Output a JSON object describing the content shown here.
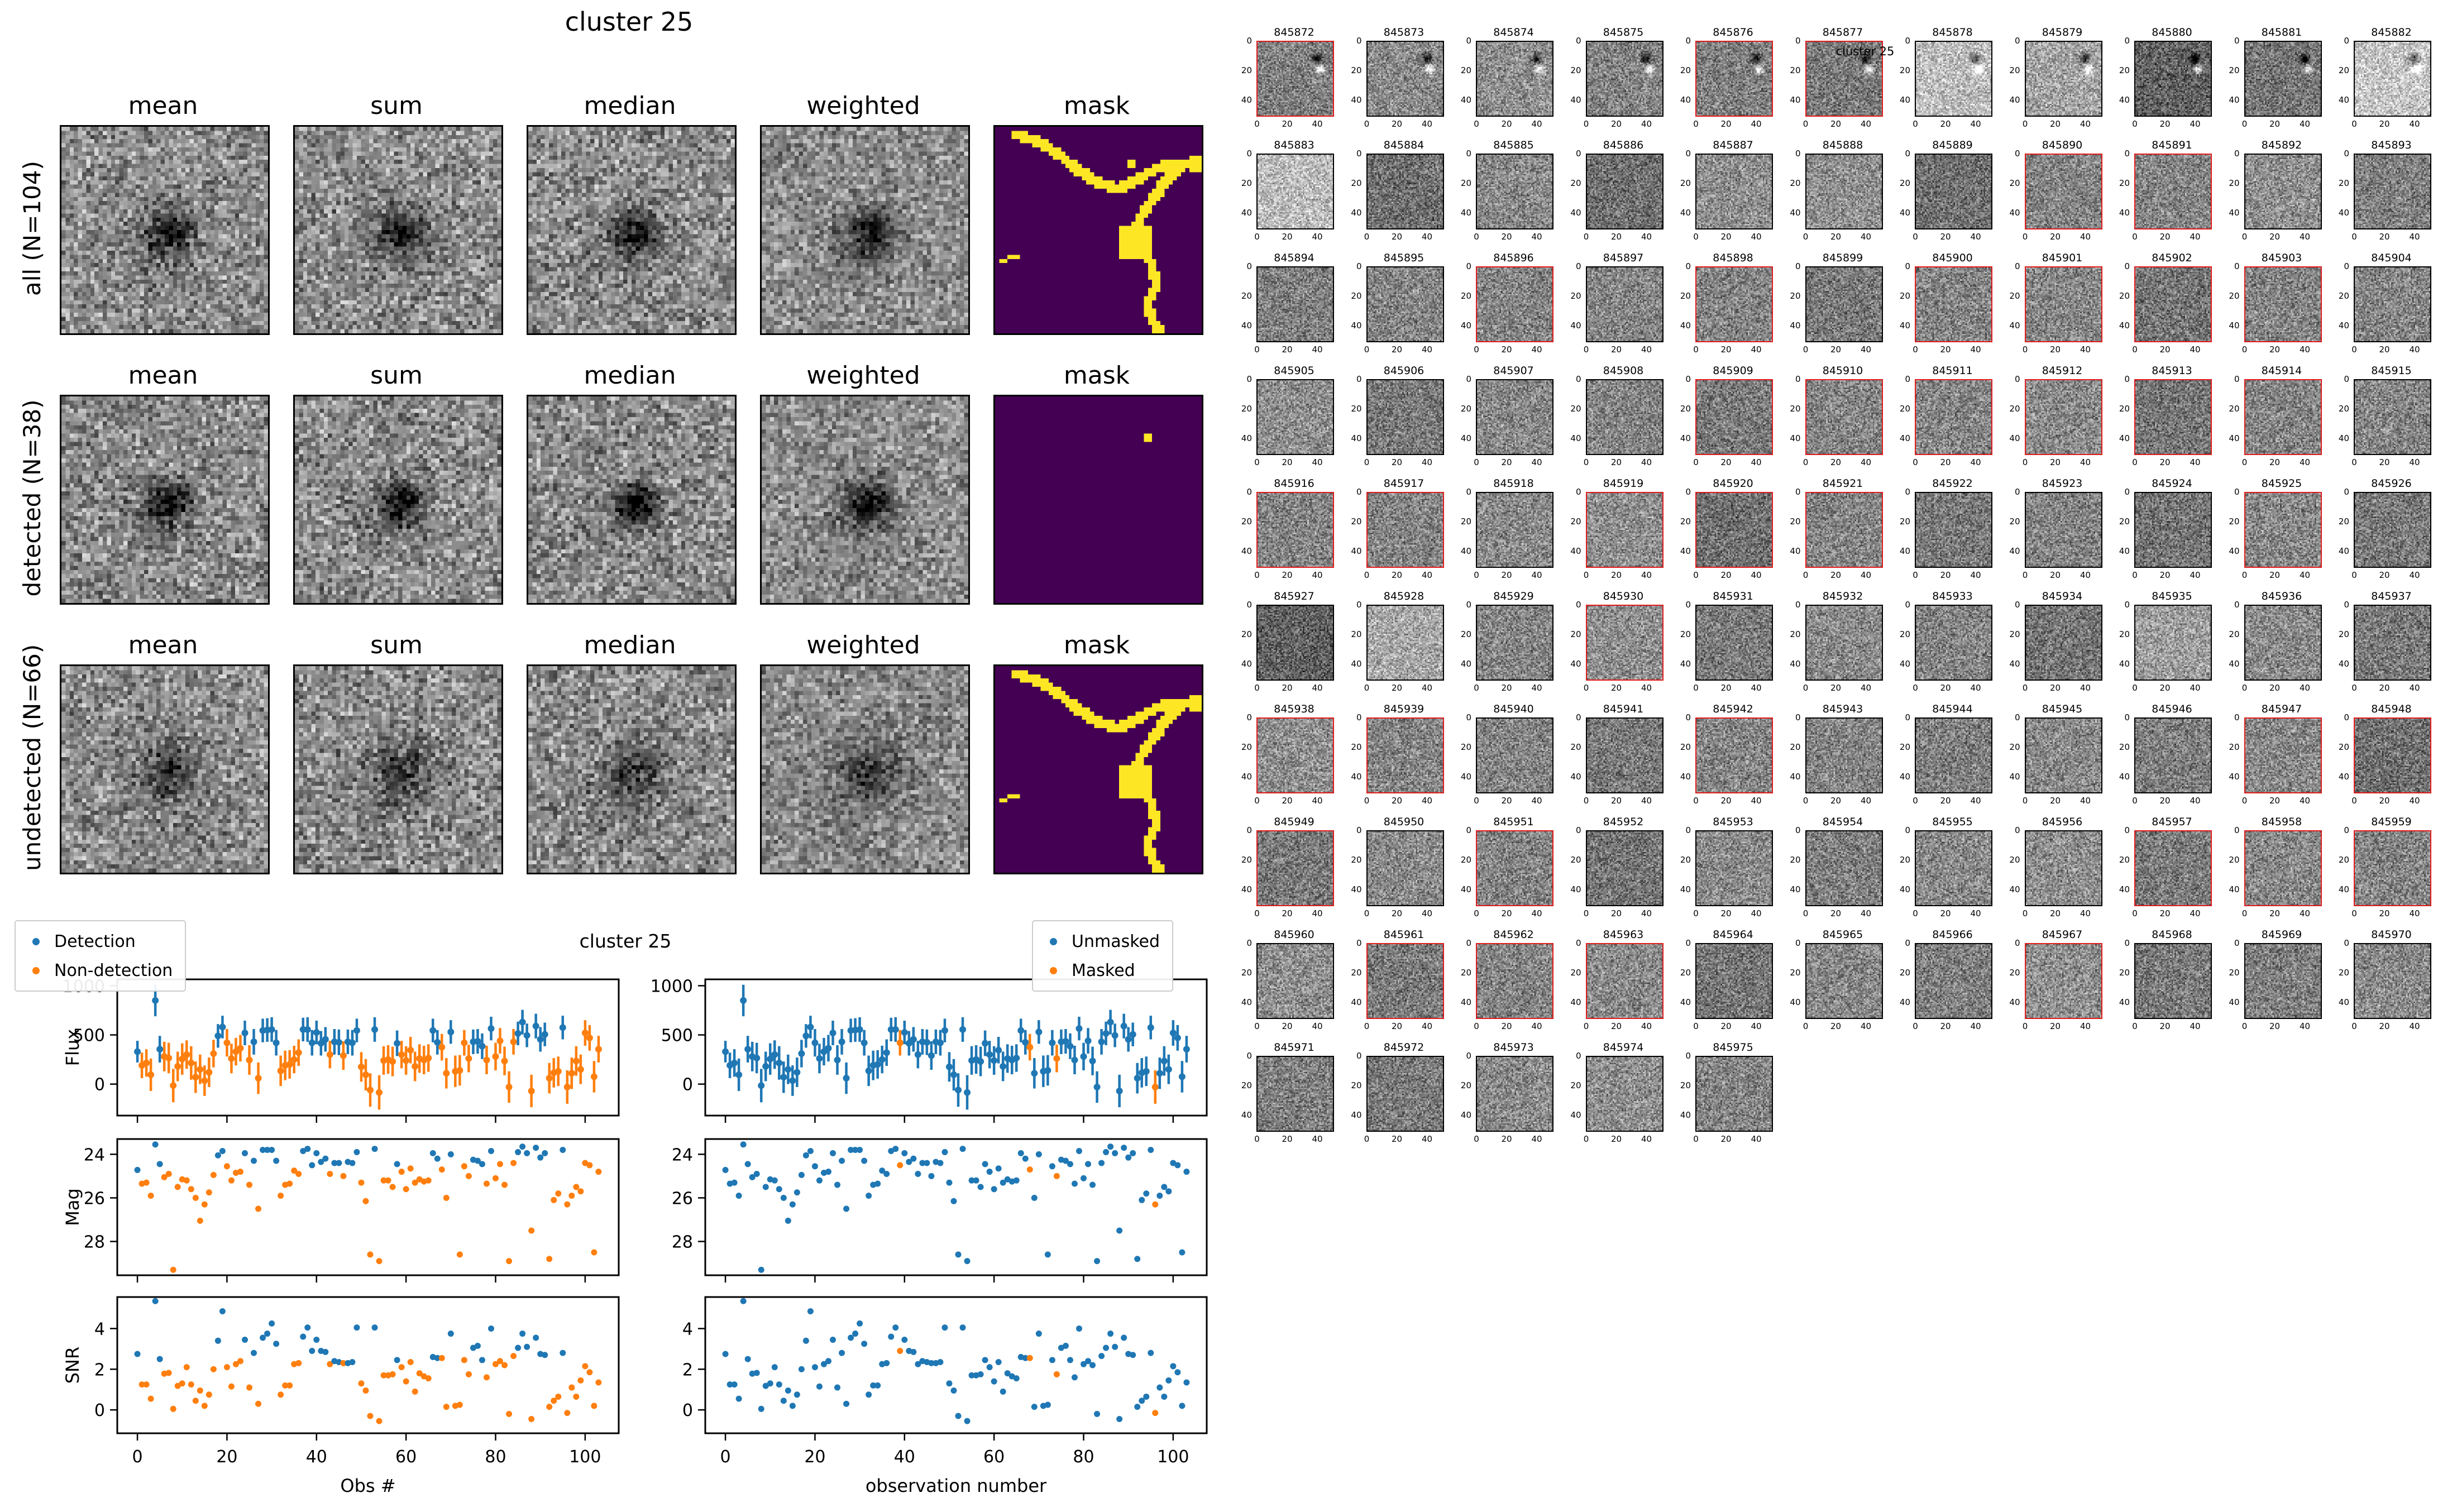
{
  "left_figure": {
    "suptitle": "cluster 25",
    "columns": [
      "mean",
      "sum",
      "median",
      "weighted",
      "mask"
    ],
    "rows": [
      {
        "label": "all (N=104)",
        "mask": "full_dot",
        "blob": 0.4,
        "sigma": 3.6
      },
      {
        "label": "detected (N=38)",
        "mask": "dot",
        "blob": 0.45,
        "sigma": 3.4
      },
      {
        "label": "undetected (N=66)",
        "mask": "full",
        "blob": 0.25,
        "sigma": 4.8
      }
    ],
    "mask_colors": {
      "bg": "#440154",
      "fg": "#fde725"
    },
    "mask_pattern": {
      "curve": [
        [
          0.1,
          0.04
        ],
        [
          0.2,
          0.07
        ],
        [
          0.3,
          0.13
        ],
        [
          0.42,
          0.22
        ],
        [
          0.52,
          0.285
        ],
        [
          0.6,
          0.3
        ],
        [
          0.68,
          0.27
        ],
        [
          0.76,
          0.22
        ],
        [
          0.84,
          0.185
        ],
        [
          0.93,
          0.185
        ],
        [
          1.0,
          0.21
        ]
      ],
      "branch": [
        [
          0.995,
          0.155
        ],
        [
          0.9,
          0.2
        ],
        [
          0.82,
          0.28
        ],
        [
          0.755,
          0.37
        ],
        [
          0.7,
          0.465
        ],
        [
          0.665,
          0.535
        ],
        [
          0.7,
          0.575
        ],
        [
          0.745,
          0.63
        ],
        [
          0.77,
          0.7
        ],
        [
          0.78,
          0.78
        ],
        [
          0.745,
          0.855
        ],
        [
          0.76,
          0.93
        ],
        [
          0.8,
          1.0
        ]
      ],
      "blob": [
        0.675,
        0.545,
        0.075
      ],
      "tick": [
        [
          0.03,
          0.655
        ],
        [
          0.115,
          0.625
        ]
      ],
      "dot_row1": [
        0.645,
        0.165
      ],
      "dot_row2": [
        0.72,
        0.17
      ]
    }
  },
  "right_panel": {
    "suptitle": "cluster 25",
    "axis_ticks": [
      "0",
      "20",
      "40"
    ],
    "red_border_color": "#e01b1b",
    "cells": [
      [
        845872,
        1,
        0.5,
        1
      ],
      [
        845873,
        0,
        0.54,
        1
      ],
      [
        845874,
        0,
        0.56,
        1
      ],
      [
        845875,
        0,
        0.52,
        1
      ],
      [
        845876,
        1,
        0.5,
        1
      ],
      [
        845877,
        1,
        0.48,
        1
      ],
      [
        845878,
        0,
        0.74,
        1
      ],
      [
        845879,
        0,
        0.64,
        1
      ],
      [
        845880,
        0,
        0.38,
        1
      ],
      [
        845881,
        0,
        0.46,
        1
      ],
      [
        845882,
        0,
        0.78,
        1
      ],
      [
        845883,
        0,
        0.74,
        0
      ],
      [
        845884,
        0,
        0.44,
        0
      ],
      [
        845885,
        0,
        0.54,
        0
      ],
      [
        845886,
        0,
        0.44,
        0
      ],
      [
        845887,
        0,
        0.56,
        0
      ],
      [
        845888,
        0,
        0.56,
        0
      ],
      [
        845889,
        0,
        0.44,
        0
      ],
      [
        845890,
        1,
        0.52,
        0
      ],
      [
        845891,
        1,
        0.52,
        0
      ],
      [
        845892,
        0,
        0.56,
        0
      ],
      [
        845893,
        0,
        0.5,
        0
      ],
      [
        845894,
        0,
        0.5,
        0
      ],
      [
        845895,
        0,
        0.52,
        0
      ],
      [
        845896,
        1,
        0.52,
        0
      ],
      [
        845897,
        0,
        0.52,
        0
      ],
      [
        845898,
        1,
        0.52,
        0
      ],
      [
        845899,
        0,
        0.48,
        0
      ],
      [
        845900,
        1,
        0.52,
        0
      ],
      [
        845901,
        1,
        0.52,
        0
      ],
      [
        845902,
        1,
        0.46,
        0
      ],
      [
        845903,
        1,
        0.52,
        0
      ],
      [
        845904,
        0,
        0.52,
        0
      ],
      [
        845905,
        0,
        0.56,
        0
      ],
      [
        845906,
        0,
        0.48,
        0
      ],
      [
        845907,
        0,
        0.54,
        0
      ],
      [
        845908,
        0,
        0.52,
        0
      ],
      [
        845909,
        1,
        0.48,
        0
      ],
      [
        845910,
        1,
        0.52,
        0
      ],
      [
        845911,
        1,
        0.52,
        0
      ],
      [
        845912,
        1,
        0.54,
        0
      ],
      [
        845913,
        1,
        0.46,
        0
      ],
      [
        845914,
        1,
        0.52,
        0
      ],
      [
        845915,
        0,
        0.52,
        0
      ],
      [
        845916,
        1,
        0.52,
        0
      ],
      [
        845917,
        1,
        0.52,
        0
      ],
      [
        845918,
        0,
        0.54,
        0
      ],
      [
        845919,
        1,
        0.56,
        0
      ],
      [
        845920,
        1,
        0.44,
        0
      ],
      [
        845921,
        1,
        0.52,
        0
      ],
      [
        845922,
        0,
        0.48,
        0
      ],
      [
        845923,
        0,
        0.52,
        0
      ],
      [
        845924,
        0,
        0.46,
        0
      ],
      [
        845925,
        1,
        0.54,
        0
      ],
      [
        845926,
        0,
        0.48,
        0
      ],
      [
        845927,
        0,
        0.38,
        0
      ],
      [
        845928,
        0,
        0.66,
        0
      ],
      [
        845929,
        0,
        0.52,
        0
      ],
      [
        845930,
        1,
        0.56,
        0
      ],
      [
        845931,
        0,
        0.48,
        0
      ],
      [
        845932,
        0,
        0.54,
        0
      ],
      [
        845933,
        0,
        0.52,
        0
      ],
      [
        845934,
        0,
        0.46,
        0
      ],
      [
        845935,
        0,
        0.62,
        0
      ],
      [
        845936,
        0,
        0.54,
        0
      ],
      [
        845937,
        0,
        0.48,
        0
      ],
      [
        845938,
        1,
        0.56,
        0
      ],
      [
        845939,
        1,
        0.52,
        0
      ],
      [
        845940,
        0,
        0.52,
        0
      ],
      [
        845941,
        0,
        0.48,
        0
      ],
      [
        845942,
        1,
        0.52,
        0
      ],
      [
        845943,
        0,
        0.52,
        0
      ],
      [
        845944,
        0,
        0.5,
        0
      ],
      [
        845945,
        0,
        0.54,
        0
      ],
      [
        845946,
        0,
        0.5,
        0
      ],
      [
        845947,
        1,
        0.54,
        0
      ],
      [
        845948,
        1,
        0.44,
        0
      ],
      [
        845949,
        1,
        0.48,
        0
      ],
      [
        845950,
        0,
        0.54,
        0
      ],
      [
        845951,
        1,
        0.52,
        0
      ],
      [
        845952,
        0,
        0.46,
        0
      ],
      [
        845953,
        0,
        0.54,
        0
      ],
      [
        845954,
        0,
        0.5,
        0
      ],
      [
        845955,
        0,
        0.54,
        0
      ],
      [
        845956,
        0,
        0.56,
        0
      ],
      [
        845957,
        1,
        0.48,
        0
      ],
      [
        845958,
        1,
        0.54,
        0
      ],
      [
        845959,
        1,
        0.52,
        0
      ],
      [
        845960,
        0,
        0.56,
        0
      ],
      [
        845961,
        1,
        0.48,
        0
      ],
      [
        845962,
        1,
        0.52,
        0
      ],
      [
        845963,
        1,
        0.54,
        0
      ],
      [
        845964,
        0,
        0.46,
        0
      ],
      [
        845965,
        0,
        0.54,
        0
      ],
      [
        845966,
        0,
        0.5,
        0
      ],
      [
        845967,
        1,
        0.56,
        0
      ],
      [
        845968,
        0,
        0.48,
        0
      ],
      [
        845969,
        0,
        0.5,
        0
      ],
      [
        845970,
        0,
        0.54,
        0
      ],
      [
        845971,
        0,
        0.5,
        0
      ],
      [
        845972,
        0,
        0.48,
        0
      ],
      [
        845973,
        0,
        0.54,
        0
      ],
      [
        845974,
        0,
        0.56,
        0
      ],
      [
        845975,
        0,
        0.52,
        0
      ]
    ]
  },
  "chart_data": {
    "type": "scatter",
    "title": "cluster 25",
    "legend_left": [
      "Detection",
      "Non-detection"
    ],
    "legend_right": [
      "Unmasked",
      "Masked"
    ],
    "colors": {
      "blue": "#1f77b4",
      "orange": "#ff7f0e"
    },
    "xlabel_left": "Obs #",
    "xlabel_right": "observation number",
    "xticks": [
      0,
      20,
      40,
      60,
      80,
      100
    ],
    "xlim": [
      -4.5,
      107.5
    ],
    "panels": [
      {
        "key": "flux",
        "ylabel": "Flux",
        "yticks": [
          0,
          500,
          1000
        ],
        "ylim": [
          -320,
          1065
        ],
        "invert": false,
        "errorbars": true
      },
      {
        "key": "mag",
        "ylabel": "Mag",
        "yticks": [
          24,
          26,
          28
        ],
        "ylim": [
          23.3,
          29.55
        ],
        "invert": true,
        "errorbars": false
      },
      {
        "key": "snr",
        "ylabel": "SNR",
        "yticks": [
          0,
          2,
          4
        ],
        "ylim": [
          -1.15,
          5.55
        ],
        "invert": false,
        "errorbars": false
      }
    ],
    "x_is_index": true,
    "flux": [
      330,
      190,
      215,
      95,
      850,
      355,
      280,
      265,
      -15,
      180,
      255,
      300,
      215,
      70,
      150,
      35,
      120,
      310,
      490,
      580,
      420,
      260,
      330,
      365,
      520,
      245,
      430,
      60,
      545,
      550,
      555,
      420,
      135,
      190,
      200,
      250,
      320,
      555,
      555,
      420,
      525,
      415,
      455,
      300,
      430,
      425,
      290,
      430,
      420,
      545,
      175,
      95,
      -60,
      555,
      -85,
      240,
      250,
      230,
      415,
      300,
      240,
      345,
      180,
      260,
      245,
      265,
      545,
      425,
      375,
      110,
      530,
      130,
      140,
      420,
      260,
      430,
      435,
      385,
      245,
      565,
      280,
      440,
      235,
      -30,
      430,
      515,
      630,
      495,
      -70,
      590,
      455,
      505,
      60,
      115,
      130,
      575,
      -30,
      110,
      235,
      150,
      520,
      470,
      75,
      355
    ],
    "flux_err": [
      110,
      130,
      140,
      165,
      160,
      135,
      150,
      155,
      170,
      150,
      160,
      145,
      170,
      160,
      150,
      155,
      150,
      140,
      120,
      115,
      140,
      150,
      140,
      135,
      125,
      150,
      130,
      160,
      120,
      120,
      125,
      130,
      155,
      150,
      145,
      140,
      135,
      120,
      125,
      130,
      120,
      125,
      125,
      140,
      130,
      130,
      145,
      125,
      130,
      120,
      150,
      160,
      170,
      125,
      175,
      145,
      145,
      150,
      130,
      140,
      145,
      135,
      150,
      145,
      145,
      140,
      120,
      125,
      135,
      155,
      120,
      160,
      155,
      130,
      140,
      125,
      125,
      130,
      145,
      120,
      140,
      130,
      145,
      160,
      130,
      120,
      125,
      120,
      165,
      125,
      125,
      120,
      155,
      150,
      150,
      120,
      170,
      160,
      150,
      150,
      130,
      130,
      160,
      135
    ],
    "mag": [
      24.72,
      25.35,
      25.3,
      25.9,
      23.55,
      24.45,
      25.05,
      24.9,
      29.3,
      25.5,
      25.15,
      25.2,
      25.6,
      26.0,
      27.05,
      26.3,
      25.75,
      24.95,
      24.05,
      23.85,
      24.55,
      25.2,
      24.85,
      24.8,
      23.95,
      25.4,
      24.3,
      26.5,
      23.8,
      23.8,
      23.8,
      24.3,
      25.9,
      25.4,
      25.35,
      24.75,
      24.9,
      23.85,
      23.75,
      24.5,
      23.95,
      24.35,
      24.2,
      24.9,
      24.4,
      24.4,
      25.0,
      24.35,
      24.4,
      23.9,
      25.3,
      26.15,
      28.6,
      23.75,
      28.9,
      25.2,
      25.2,
      25.5,
      24.45,
      24.8,
      25.6,
      24.65,
      25.3,
      25.15,
      25.25,
      25.2,
      23.95,
      24.2,
      24.7,
      26.0,
      24.0,
      29.45,
      28.6,
      24.55,
      25.0,
      24.25,
      24.3,
      24.45,
      25.35,
      23.85,
      25.1,
      24.45,
      25.4,
      28.9,
      24.4,
      23.9,
      23.65,
      23.95,
      27.5,
      23.7,
      24.15,
      23.95,
      28.8,
      26.1,
      25.8,
      23.8,
      26.3,
      25.9,
      25.5,
      25.7,
      24.4,
      24.5,
      28.5,
      24.8
    ],
    "snr": [
      2.75,
      1.25,
      1.25,
      0.55,
      5.35,
      2.5,
      1.78,
      1.82,
      0.05,
      1.18,
      1.3,
      2.1,
      1.25,
      0.45,
      0.95,
      0.2,
      0.75,
      2.0,
      3.4,
      4.85,
      2.1,
      1.15,
      2.25,
      2.4,
      3.45,
      1.1,
      2.8,
      0.3,
      3.55,
      3.75,
      4.25,
      3.25,
      0.75,
      1.2,
      1.2,
      2.25,
      2.3,
      3.6,
      4.05,
      2.9,
      3.45,
      2.9,
      2.85,
      2.25,
      2.4,
      2.35,
      2.3,
      2.3,
      2.35,
      4.05,
      1.3,
      0.95,
      -0.3,
      4.05,
      -0.55,
      1.7,
      1.7,
      1.75,
      2.45,
      2.1,
      1.4,
      2.35,
      0.9,
      1.8,
      1.65,
      1.55,
      2.6,
      2.55,
      2.55,
      0.15,
      3.75,
      0.2,
      0.25,
      2.45,
      1.75,
      3.05,
      3.15,
      2.45,
      1.6,
      4.0,
      2.25,
      2.4,
      2.2,
      -0.2,
      2.65,
      3.05,
      3.75,
      3.1,
      -0.45,
      3.55,
      2.75,
      2.7,
      0.15,
      0.45,
      0.65,
      2.8,
      -0.15,
      1.1,
      0.65,
      1.45,
      2.15,
      1.85,
      0.2,
      1.35
    ],
    "detected_idx": [
      0,
      4,
      5,
      18,
      19,
      24,
      26,
      28,
      29,
      30,
      31,
      37,
      38,
      39,
      40,
      41,
      42,
      44,
      45,
      47,
      48,
      49,
      53,
      58,
      66,
      67,
      70,
      75,
      76,
      77,
      79,
      85,
      86,
      87,
      89,
      90,
      91,
      95
    ],
    "masked_idx": [
      39,
      68,
      74,
      96
    ]
  }
}
